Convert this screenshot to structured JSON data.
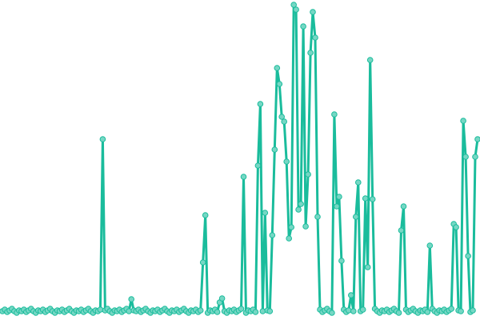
{
  "chart_data": {
    "type": "line",
    "title": "",
    "xlabel": "",
    "ylabel": "",
    "grid": false,
    "legend": "none",
    "markers": true,
    "ylim": [
      0,
      392
    ],
    "colors": {
      "line": "#1abc9c",
      "marker_fill": "#76d7c4",
      "marker_stroke": "#1abc9c"
    },
    "values": [
      3,
      5,
      2,
      4,
      6,
      3,
      1,
      4,
      3,
      5,
      2,
      4,
      6,
      3,
      1,
      4,
      3,
      5,
      2,
      4,
      6,
      3,
      1,
      4,
      3,
      5,
      2,
      4,
      6,
      3,
      1,
      4,
      3,
      5,
      2,
      4,
      6,
      3,
      1,
      4,
      3,
      5,
      218,
      4,
      6,
      3,
      1,
      4,
      3,
      5,
      2,
      4,
      6,
      3,
      18,
      4,
      3,
      5,
      2,
      4,
      6,
      3,
      1,
      4,
      3,
      5,
      2,
      4,
      6,
      3,
      1,
      4,
      3,
      5,
      2,
      4,
      6,
      3,
      1,
      4,
      3,
      5,
      2,
      4,
      64,
      123,
      1,
      4,
      3,
      5,
      2,
      14,
      19,
      3,
      1,
      4,
      3,
      5,
      2,
      4,
      6,
      171,
      1,
      4,
      3,
      5,
      2,
      185,
      262,
      3,
      126,
      4,
      3,
      98,
      205,
      307,
      287,
      246,
      240,
      190,
      94,
      108,
      386,
      380,
      130,
      137,
      359,
      109,
      174,
      326,
      377,
      345,
      121,
      5,
      2,
      4,
      6,
      3,
      1,
      249,
      134,
      146,
      66,
      5,
      2,
      4,
      23,
      3,
      121,
      164,
      3,
      5,
      144,
      58,
      317,
      143,
      6,
      3,
      1,
      4,
      3,
      5,
      2,
      4,
      6,
      3,
      1,
      104,
      134,
      5,
      2,
      4,
      6,
      3,
      1,
      4,
      3,
      5,
      2,
      85,
      6,
      3,
      1,
      4,
      3,
      5,
      2,
      4,
      6,
      112,
      108,
      4,
      3,
      241,
      196,
      72,
      2,
      4,
      196,
      218
    ]
  }
}
